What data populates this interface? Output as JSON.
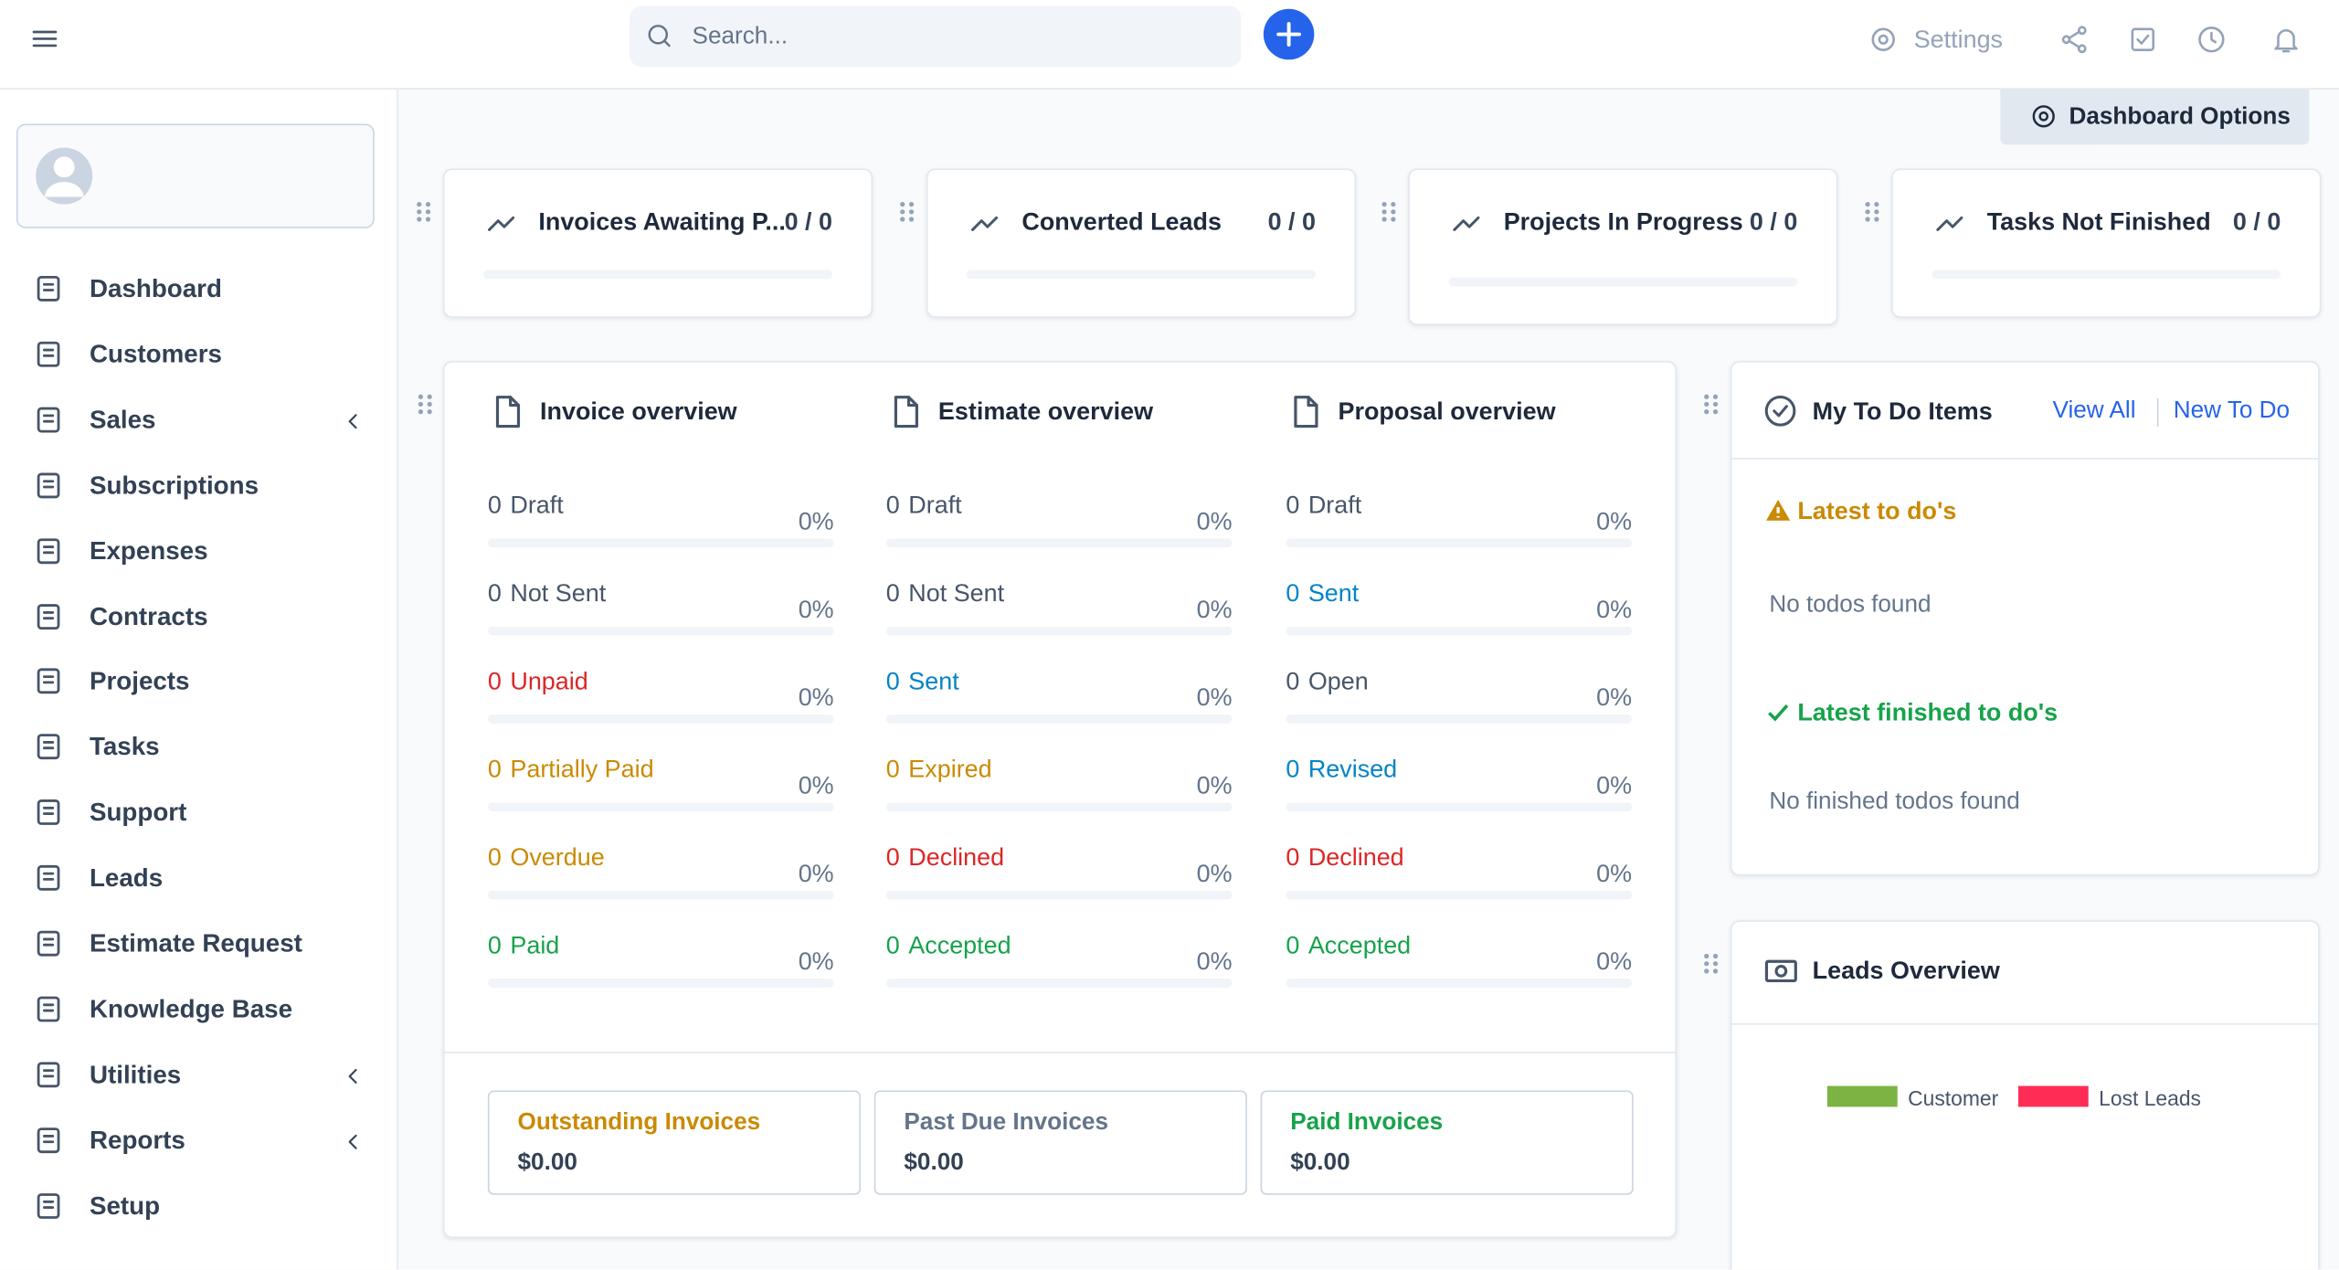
{
  "topbar": {
    "search_placeholder": "Search...",
    "settings": "Settings"
  },
  "sidebar": {
    "menu": [
      {
        "label": "Dashboard"
      },
      {
        "label": "Customers"
      },
      {
        "label": "Sales",
        "submenu": true
      },
      {
        "label": "Subscriptions"
      },
      {
        "label": "Expenses"
      },
      {
        "label": "Contracts"
      },
      {
        "label": "Projects"
      },
      {
        "label": "Tasks"
      },
      {
        "label": "Support"
      },
      {
        "label": "Leads"
      },
      {
        "label": "Estimate Request"
      },
      {
        "label": "Knowledge Base"
      },
      {
        "label": "Utilities",
        "submenu": true
      },
      {
        "label": "Reports",
        "submenu": true
      },
      {
        "label": "Setup"
      }
    ]
  },
  "dashboard_options": "Dashboard Options",
  "stats": [
    {
      "title": "Invoices Awaiting P...",
      "value": "0 / 0"
    },
    {
      "title": "Converted Leads",
      "value": "0 / 0"
    },
    {
      "title": "Projects In Progress",
      "value": "0 / 0"
    },
    {
      "title": "Tasks Not Finished",
      "value": "0 / 0"
    }
  ],
  "overviews": [
    {
      "title": "Invoice overview",
      "rows": [
        {
          "count": 0,
          "label": "Draft",
          "percent": "0%",
          "color": "#475569"
        },
        {
          "count": 0,
          "label": "Not Sent",
          "percent": "0%",
          "color": "#475569"
        },
        {
          "count": 0,
          "label": "Unpaid",
          "percent": "0%",
          "color": "#dc2626"
        },
        {
          "count": 0,
          "label": "Partially Paid",
          "percent": "0%",
          "color": "#ca8a04"
        },
        {
          "count": 0,
          "label": "Overdue",
          "percent": "0%",
          "color": "#ca8a04"
        },
        {
          "count": 0,
          "label": "Paid",
          "percent": "0%",
          "color": "#16a34a"
        }
      ]
    },
    {
      "title": "Estimate overview",
      "rows": [
        {
          "count": 0,
          "label": "Draft",
          "percent": "0%",
          "color": "#475569"
        },
        {
          "count": 0,
          "label": "Not Sent",
          "percent": "0%",
          "color": "#475569"
        },
        {
          "count": 0,
          "label": "Sent",
          "percent": "0%",
          "color": "#0284c7"
        },
        {
          "count": 0,
          "label": "Expired",
          "percent": "0%",
          "color": "#ca8a04"
        },
        {
          "count": 0,
          "label": "Declined",
          "percent": "0%",
          "color": "#dc2626"
        },
        {
          "count": 0,
          "label": "Accepted",
          "percent": "0%",
          "color": "#16a34a"
        }
      ]
    },
    {
      "title": "Proposal overview",
      "rows": [
        {
          "count": 0,
          "label": "Draft",
          "percent": "0%",
          "color": "#475569"
        },
        {
          "count": 0,
          "label": "Sent",
          "percent": "0%",
          "color": "#0284c7"
        },
        {
          "count": 0,
          "label": "Open",
          "percent": "0%",
          "color": "#475569"
        },
        {
          "count": 0,
          "label": "Revised",
          "percent": "0%",
          "color": "#0284c7"
        },
        {
          "count": 0,
          "label": "Declined",
          "percent": "0%",
          "color": "#dc2626"
        },
        {
          "count": 0,
          "label": "Accepted",
          "percent": "0%",
          "color": "#16a34a"
        }
      ]
    }
  ],
  "summary": [
    {
      "label": "Outstanding Invoices",
      "amount": "$0.00",
      "color": "#ca8a04"
    },
    {
      "label": "Past Due Invoices",
      "amount": "$0.00",
      "color": "#64748b"
    },
    {
      "label": "Paid Invoices",
      "amount": "$0.00",
      "color": "#16a34a"
    }
  ],
  "todo": {
    "title": "My To Do Items",
    "view_all": "View All",
    "new_todo": "New To Do",
    "latest": "Latest to do's",
    "no_todos": "No todos found",
    "finished": "Latest finished to do's",
    "no_finished": "No finished todos found"
  },
  "leads": {
    "title": "Leads Overview",
    "legend": [
      {
        "name": "Customer",
        "color": "#7cb342"
      },
      {
        "name": "Lost Leads",
        "color": "#ff2d55"
      }
    ]
  }
}
